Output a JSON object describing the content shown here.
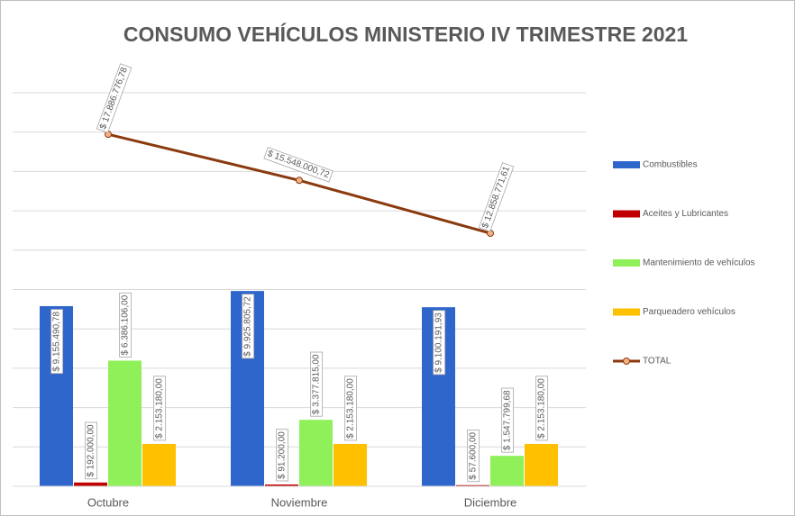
{
  "chart_data": {
    "type": "bar",
    "title": "CONSUMO VEHÍCULOS MINISTERIO IV TRIMESTRE 2021",
    "categories": [
      "Octubre",
      "Noviembre",
      "Diciembre"
    ],
    "ylim": [
      0,
      20000000
    ],
    "yticks": [
      0,
      2000000,
      4000000,
      6000000,
      8000000,
      10000000,
      12000000,
      14000000,
      16000000,
      18000000,
      20000000
    ],
    "grid": true,
    "legend": "right",
    "series": [
      {
        "name": "Combustibles",
        "color": "#2f66cc",
        "values": [
          9155490.78,
          9925805.72,
          9100191.93
        ],
        "value_labels": [
          "$ 9.155.490,78",
          "$ 9.925.805,72",
          "$ 9.100.191,93"
        ]
      },
      {
        "name": "Aceites y Lubricantes",
        "color": "#c00000",
        "values": [
          192000,
          91200,
          57600
        ],
        "value_labels": [
          "$ 192.000,00",
          "$ 91.200,00",
          "$ 57.600,00"
        ]
      },
      {
        "name": "Mantenimiento de vehículos",
        "color": "#8ff05a",
        "values": [
          6386106,
          3377815,
          1547799.68
        ],
        "value_labels": [
          "$ 6.386.106,00",
          "$ 3.377.815,00",
          "$ 1.547.799,68"
        ]
      },
      {
        "name": "Parqueadero vehículos",
        "color": "#ffc000",
        "values": [
          2153180,
          2153180,
          2153180
        ],
        "value_labels": [
          "$ 2.153.180,00",
          "$ 2.153.180,00",
          "$ 2.153.180,00"
        ]
      },
      {
        "name": "TOTAL",
        "type": "line",
        "color": "#8b3a0f",
        "marker_color": "#f4b183",
        "values": [
          17886776.78,
          15548000.72,
          12858771.61
        ],
        "value_labels": [
          "$ 17.886.776,78",
          "$ 15.548.000,72",
          "$ 12.858.771,61"
        ]
      }
    ]
  }
}
